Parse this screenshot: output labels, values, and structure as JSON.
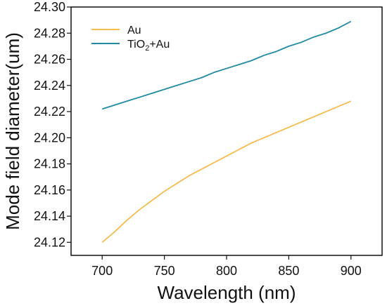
{
  "chart_data": {
    "type": "line",
    "xlabel": "Wavelength (nm)",
    "ylabel": "Mode field diameter(um)",
    "xlim": [
      675,
      925
    ],
    "ylim": [
      24.11,
      24.3
    ],
    "xticks": [
      "700",
      "750",
      "800",
      "850",
      "900"
    ],
    "yticks": [
      "24.12",
      "24.14",
      "24.16",
      "24.18",
      "24.20",
      "24.22",
      "24.24",
      "24.26",
      "24.28",
      "24.30"
    ],
    "legend_placement": "top-left",
    "grid": false,
    "series": [
      {
        "name": "Au",
        "color": "#f5bc4f",
        "x": [
          700,
          710,
          720,
          730,
          740,
          750,
          760,
          770,
          780,
          790,
          800,
          810,
          820,
          830,
          840,
          850,
          860,
          870,
          880,
          890,
          900
        ],
        "y": [
          24.12,
          24.128,
          24.137,
          24.145,
          24.152,
          24.159,
          24.165,
          24.171,
          24.176,
          24.181,
          24.186,
          24.191,
          24.196,
          24.2,
          24.204,
          24.208,
          24.212,
          24.216,
          24.22,
          24.224,
          24.228
        ]
      },
      {
        "name_parts": [
          "TiO",
          "2",
          "+Au"
        ],
        "color": "#1f8aa0",
        "x": [
          700,
          710,
          720,
          730,
          740,
          750,
          760,
          770,
          780,
          790,
          800,
          810,
          820,
          830,
          840,
          850,
          860,
          870,
          880,
          890,
          900
        ],
        "y": [
          24.222,
          24.225,
          24.228,
          24.231,
          24.234,
          24.237,
          24.24,
          24.243,
          24.246,
          24.25,
          24.253,
          24.256,
          24.259,
          24.263,
          24.266,
          24.27,
          24.273,
          24.277,
          24.28,
          24.284,
          24.289
        ]
      }
    ]
  }
}
